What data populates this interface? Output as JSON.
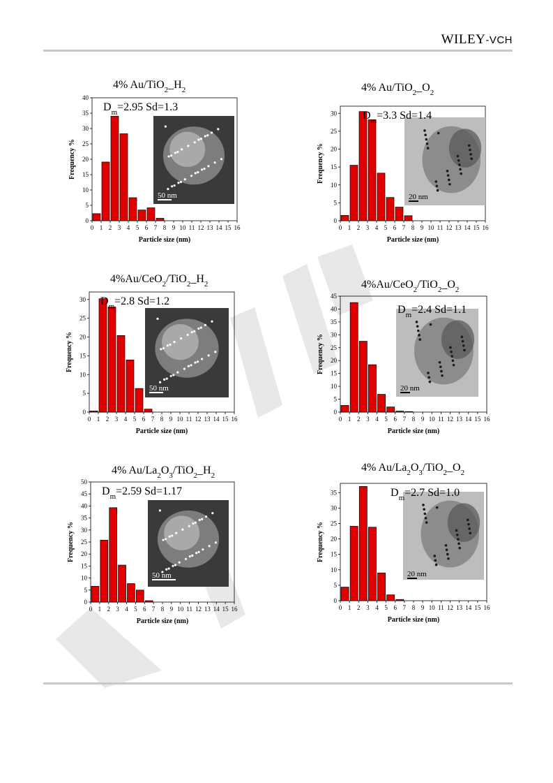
{
  "header": {
    "publisher_main": "WILEY",
    "publisher_suffix": "-VCH"
  },
  "colors": {
    "bar": "#e00000",
    "bar_stroke": "#000000",
    "rule": "#c8c8c8",
    "watermark": "#e6e6e6",
    "sem_dark": "#3a3a3a",
    "tem_light": "#bdbdbd"
  },
  "chart_data": [
    {
      "type": "bar",
      "title_parts": [
        [
          "4% Au/TiO",
          "r"
        ],
        [
          "2",
          "sub"
        ],
        [
          "_H",
          "r"
        ],
        [
          "2",
          "sub"
        ]
      ],
      "stat_parts": [
        [
          "D",
          "r"
        ],
        [
          "m",
          "sub"
        ],
        [
          "=2.95 Sd=1.3",
          "r"
        ]
      ],
      "scale_label": "50 nm",
      "image_style": "sem",
      "xlabel": "Particle size (nm)",
      "ylabel": "Frequency %",
      "xlim": [
        0,
        16
      ],
      "ylim": [
        0,
        40
      ],
      "yticks": [
        0,
        5,
        10,
        15,
        20,
        25,
        30,
        35,
        40
      ],
      "bin_start": [
        0,
        1,
        2,
        3,
        4,
        5,
        6,
        7
      ],
      "values": [
        2.3,
        19.1,
        34.0,
        28.3,
        7.5,
        3.5,
        4.2,
        0.8
      ]
    },
    {
      "type": "bar",
      "title_parts": [
        [
          "4% Au/TiO",
          "r"
        ],
        [
          "2",
          "sub"
        ],
        [
          "_O",
          "r"
        ],
        [
          "2",
          "sub"
        ]
      ],
      "stat_parts": [
        [
          "D",
          "r"
        ],
        [
          "m",
          "sub"
        ],
        [
          "=3.3 Sd=1.4",
          "r"
        ]
      ],
      "scale_label": "20 nm",
      "image_style": "tem",
      "xlabel": "Particle size (nm)",
      "ylabel": "Frequency %",
      "xlim": [
        0,
        16
      ],
      "ylim": [
        0,
        32
      ],
      "yticks": [
        0,
        5,
        10,
        15,
        20,
        25,
        30
      ],
      "bin_start": [
        0,
        1,
        2,
        3,
        4,
        5,
        6,
        7
      ],
      "values": [
        1.5,
        15.5,
        30.5,
        28.2,
        13.3,
        6.5,
        3.8,
        1.4
      ]
    },
    {
      "type": "bar",
      "title_parts": [
        [
          "4%Au/CeO",
          "r"
        ],
        [
          "2",
          "sub"
        ],
        [
          "/TiO",
          "r"
        ],
        [
          "2",
          "sub"
        ],
        [
          "_H",
          "r"
        ],
        [
          "2",
          "sub"
        ]
      ],
      "stat_parts": [
        [
          "D",
          "r"
        ],
        [
          "m",
          "sub"
        ],
        [
          "=2.8 Sd=1.2",
          "r"
        ]
      ],
      "scale_label": "50 nm",
      "image_style": "sem",
      "xlabel": "Particle size (nm)",
      "ylabel": "Frequency %",
      "xlim": [
        0,
        16
      ],
      "ylim": [
        0,
        32
      ],
      "yticks": [
        0,
        5,
        10,
        15,
        20,
        25,
        30
      ],
      "bin_start": [
        0,
        1,
        2,
        3,
        4,
        5,
        6
      ],
      "values": [
        0.3,
        30.2,
        28.0,
        20.4,
        13.9,
        6.3,
        0.8
      ]
    },
    {
      "type": "bar",
      "title_parts": [
        [
          "4%Au/CeO",
          "r"
        ],
        [
          "2",
          "sub"
        ],
        [
          "/TiO",
          "r"
        ],
        [
          "2",
          "sub"
        ],
        [
          "_O",
          "r"
        ],
        [
          "2",
          "sub"
        ]
      ],
      "stat_parts": [
        [
          "D",
          "r"
        ],
        [
          "m",
          "sub"
        ],
        [
          "=2.4 Sd=1.1",
          "r"
        ]
      ],
      "scale_label": "20 nm",
      "image_style": "tem",
      "xlabel": "Particle size (nm)",
      "ylabel": "Frequency %",
      "xlim": [
        0,
        16
      ],
      "ylim": [
        0,
        45
      ],
      "yticks": [
        0,
        5,
        10,
        15,
        20,
        25,
        30,
        35,
        40,
        45
      ],
      "bin_start": [
        0,
        1,
        2,
        3,
        4,
        5,
        6,
        7
      ],
      "values": [
        2.6,
        42.5,
        27.5,
        18.4,
        6.9,
        2.0,
        0.4,
        0.2
      ]
    },
    {
      "type": "bar",
      "title_parts": [
        [
          "4% Au/La",
          "r"
        ],
        [
          "2",
          "sub"
        ],
        [
          "O",
          "r"
        ],
        [
          "3",
          "sub"
        ],
        [
          "/TiO",
          "r"
        ],
        [
          "2",
          "sub"
        ],
        [
          "_H",
          "r"
        ],
        [
          "2",
          "sub"
        ]
      ],
      "stat_parts": [
        [
          "D",
          "r"
        ],
        [
          "m",
          "sub"
        ],
        [
          "=2.59 Sd=1.17",
          "r"
        ]
      ],
      "scale_label": "50 nm",
      "image_style": "sem",
      "xlabel": "Particle size (nm)",
      "ylabel": "Frequency %",
      "xlim": [
        0,
        16
      ],
      "ylim": [
        0,
        50
      ],
      "yticks": [
        0,
        5,
        10,
        15,
        20,
        25,
        30,
        35,
        40,
        45,
        50
      ],
      "bin_start": [
        0,
        1,
        2,
        3,
        4,
        5,
        6
      ],
      "values": [
        6.6,
        25.8,
        39.3,
        15.4,
        7.7,
        5.0,
        0.6
      ]
    },
    {
      "type": "bar",
      "title_parts": [
        [
          "4% Au/La",
          "r"
        ],
        [
          "2",
          "sub"
        ],
        [
          "O",
          "r"
        ],
        [
          "3",
          "sub"
        ],
        [
          "/TiO",
          "r"
        ],
        [
          "2",
          "sub"
        ],
        [
          "_O",
          "r"
        ],
        [
          "2",
          "sub"
        ]
      ],
      "stat_parts": [
        [
          "D",
          "r"
        ],
        [
          "m",
          "sub"
        ],
        [
          "=2.7 Sd=1.0",
          "r"
        ]
      ],
      "scale_label": "20 nm",
      "image_style": "tem",
      "xlabel": "Particle size (nm)",
      "ylabel": "Frequency %",
      "xlim": [
        0,
        16
      ],
      "ylim": [
        0,
        38
      ],
      "yticks": [
        0,
        5,
        10,
        15,
        20,
        25,
        30,
        35
      ],
      "bin_start": [
        0,
        1,
        2,
        3,
        4,
        5,
        6
      ],
      "values": [
        4.4,
        24.1,
        37.0,
        23.8,
        9.0,
        1.9,
        0.4
      ]
    }
  ]
}
